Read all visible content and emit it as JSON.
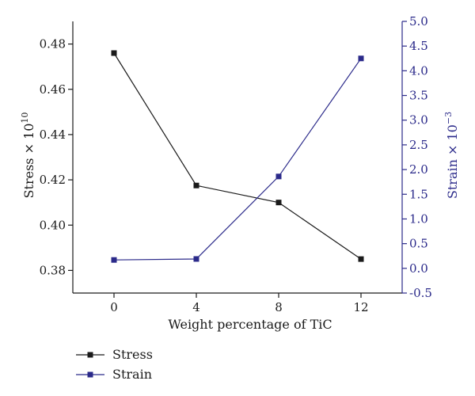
{
  "chart_data": {
    "type": "line",
    "x": [
      0,
      4,
      8,
      12
    ],
    "xlabel": "Weight percentage of TiC",
    "xlim": [
      -2,
      14
    ],
    "xticks": [
      "0",
      "4",
      "8",
      "12"
    ],
    "y_left": {
      "label_base": "Stress × 10",
      "label_exp": "10",
      "lim": [
        0.37,
        0.49
      ],
      "ticks": [
        "0.38",
        "0.40",
        "0.42",
        "0.44",
        "0.46",
        "0.48"
      ],
      "tick_values": [
        0.38,
        0.4,
        0.42,
        0.44,
        0.46,
        0.48
      ],
      "color": "#1a1a1a"
    },
    "y_right": {
      "label_base": "Strain × 10",
      "label_exp": "−3",
      "lim": [
        -0.5,
        5.0
      ],
      "ticks": [
        "-0.5",
        "0.0",
        "0.5",
        "1.0",
        "1.5",
        "2.0",
        "2.5",
        "3.0",
        "3.5",
        "4.0",
        "4.5",
        "5.0"
      ],
      "tick_values": [
        -0.5,
        0.0,
        0.5,
        1.0,
        1.5,
        2.0,
        2.5,
        3.0,
        3.5,
        4.0,
        4.5,
        5.0
      ],
      "color": "#2b2a8a"
    },
    "series": [
      {
        "name": "Stress",
        "axis": "left",
        "color": "#1a1a1a",
        "values": [
          0.476,
          0.4175,
          0.41,
          0.385
        ]
      },
      {
        "name": "Strain",
        "axis": "right",
        "color": "#2b2a8a",
        "values": [
          0.17,
          0.19,
          1.86,
          4.25
        ]
      }
    ],
    "grid": false,
    "legend": "bottom-left"
  }
}
